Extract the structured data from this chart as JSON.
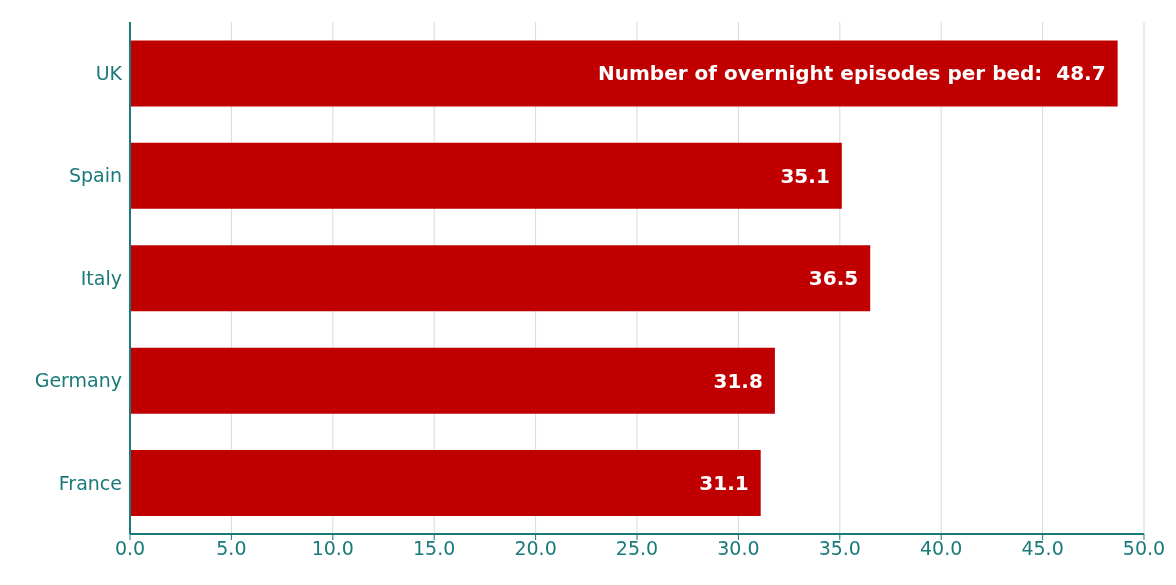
{
  "chart_data": {
    "type": "bar",
    "orientation": "horizontal",
    "categories": [
      "UK",
      "Spain",
      "Italy",
      "Germany",
      "France"
    ],
    "values": [
      48.7,
      35.1,
      36.5,
      31.8,
      31.1
    ],
    "value_labels": [
      "Number of overnight episodes per bed:  48.7",
      "35.1",
      "36.5",
      "31.8",
      "31.1"
    ],
    "color": "#c00000",
    "xlim": [
      0,
      50
    ],
    "xticks": [
      {
        "value": 0,
        "label": "0.0"
      },
      {
        "value": 5,
        "label": "5.0"
      },
      {
        "value": 10,
        "label": "10.0"
      },
      {
        "value": 15,
        "label": "15.0"
      },
      {
        "value": 20,
        "label": "20.0"
      },
      {
        "value": 25,
        "label": "25.0"
      },
      {
        "value": 30,
        "label": "30.0"
      },
      {
        "value": 35,
        "label": "35.0"
      },
      {
        "value": 40,
        "label": "40.0"
      },
      {
        "value": 45,
        "label": "45.0"
      },
      {
        "value": 50,
        "label": "50.0"
      }
    ],
    "grid": "x"
  }
}
